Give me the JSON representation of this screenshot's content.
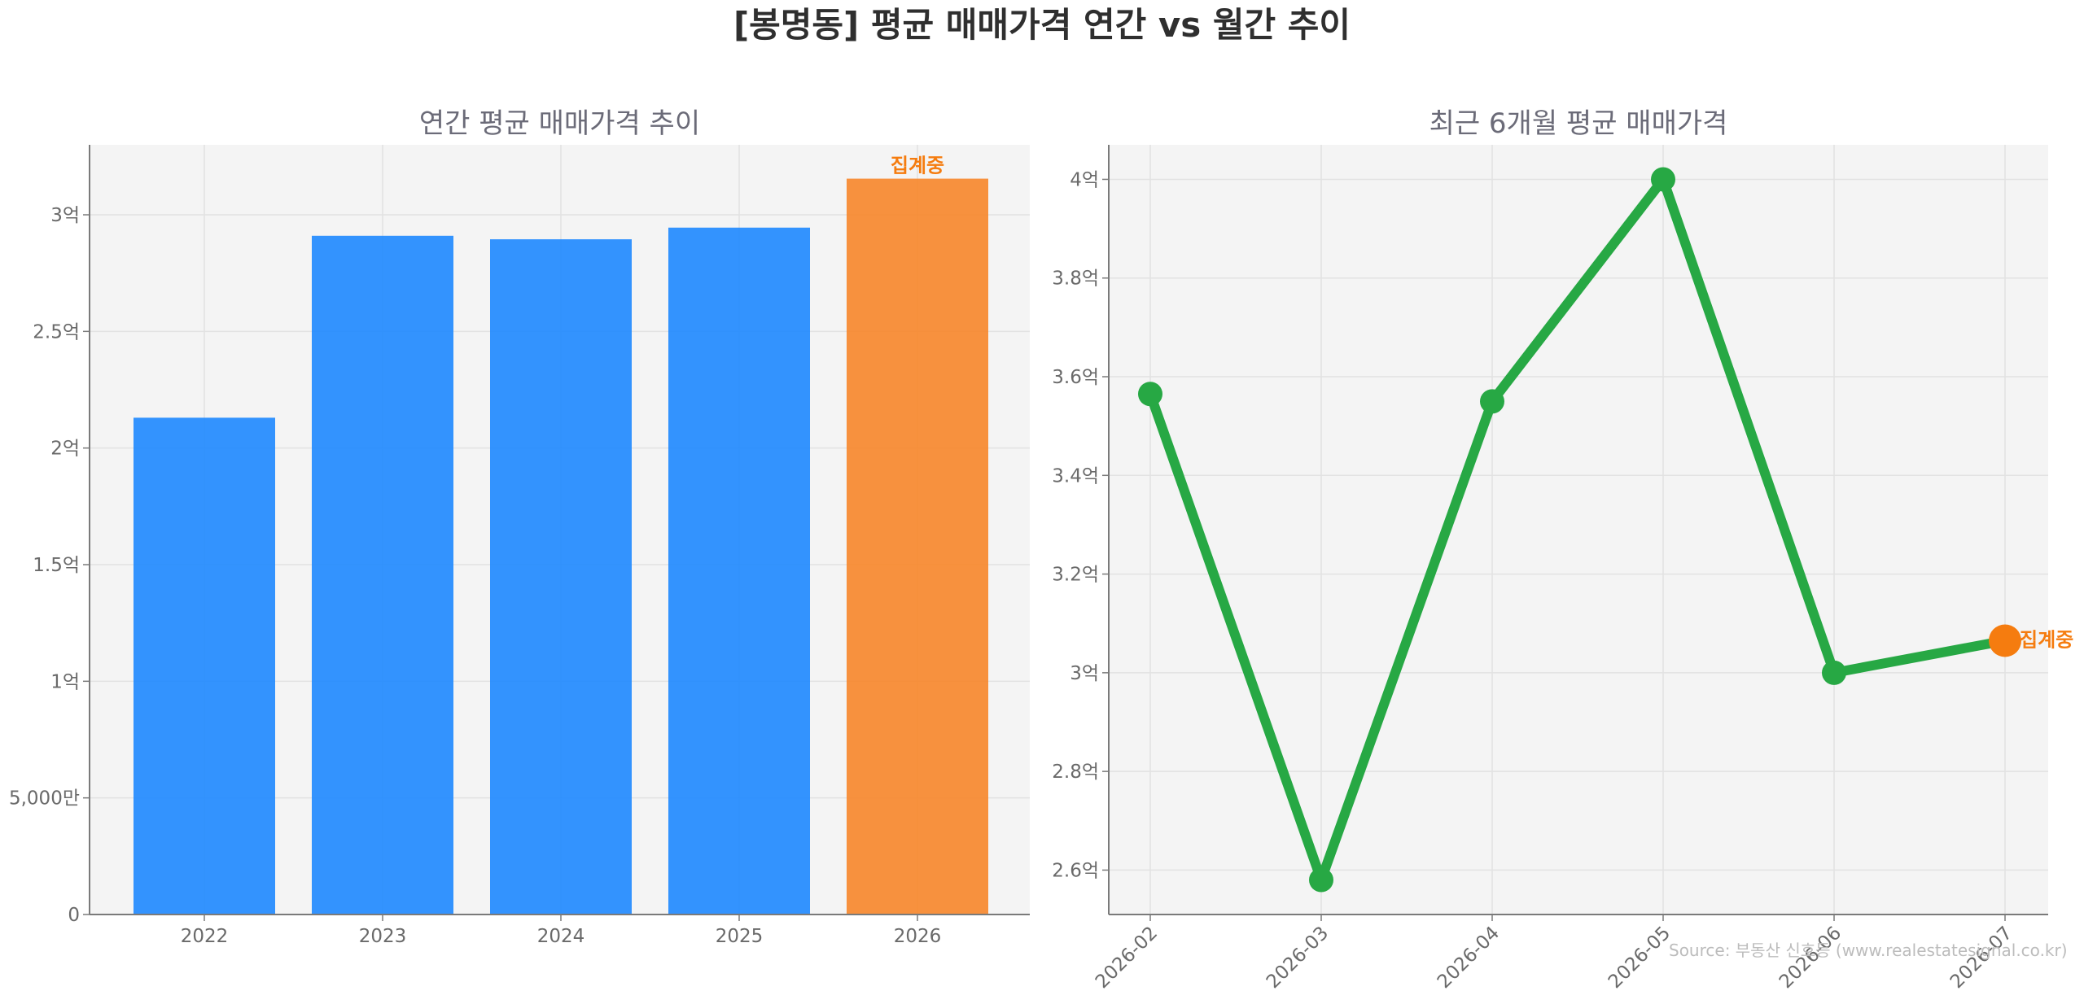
{
  "title": "[봉명동] 평균 매매가격 연간 vs 월간 추이",
  "source": "Source: 부동산 신호등 (www.realestatesignal.co.kr)",
  "colors": {
    "bar": "#1e88ff",
    "bar_pending": "#f7862a",
    "line": "#27a844",
    "point_pending": "#f57c0f",
    "panel_bg": "#f4f4f4",
    "grid": "#e2e2e2",
    "axis": "#7a7a7a"
  },
  "chart_data": [
    {
      "type": "bar",
      "title": "연간 평균 매매가격 추이",
      "categories": [
        "2022",
        "2023",
        "2024",
        "2025",
        "2026"
      ],
      "values": [
        21300,
        29100,
        28950,
        29450,
        31550
      ],
      "value_unit": "만원",
      "ylim": [
        0,
        33000
      ],
      "yticks": [
        0,
        5000,
        10000,
        15000,
        20000,
        25000,
        30000
      ],
      "ytick_labels": [
        "0",
        "5,000만",
        "1억",
        "1.5억",
        "2억",
        "2.5억",
        "3억"
      ],
      "grid": true,
      "annotations": [
        {
          "category": "2026",
          "text": "집계중"
        }
      ]
    },
    {
      "type": "line",
      "title": "최근 6개월 평균 매매가격",
      "x": [
        "2026-02",
        "2026-03",
        "2026-04",
        "2026-05",
        "2026-06",
        "2026-07"
      ],
      "values": [
        35650,
        25800,
        35500,
        40000,
        30000,
        30650
      ],
      "value_unit": "만원",
      "ylim": [
        25100,
        40700
      ],
      "yticks": [
        26000,
        28000,
        30000,
        32000,
        34000,
        36000,
        38000,
        40000
      ],
      "ytick_labels": [
        "2.6억",
        "2.8억",
        "3억",
        "3.2억",
        "3.4억",
        "3.6억",
        "3.8억",
        "4억"
      ],
      "grid": true,
      "annotations": [
        {
          "x": "2026-07",
          "text": "집계중"
        }
      ]
    }
  ]
}
